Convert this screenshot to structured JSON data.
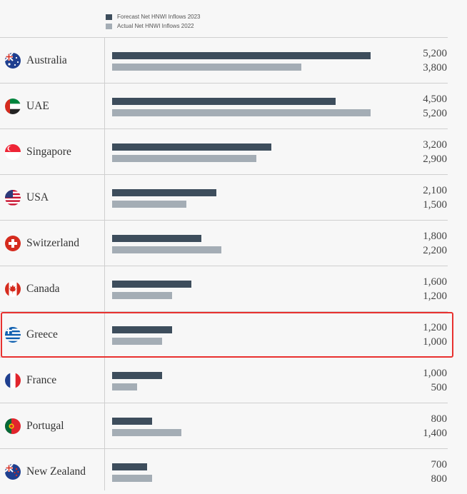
{
  "legend": {
    "forecast_label": "Forecast Net HNWI Inflows 2023",
    "actual_label": "Actual Net HNWI Inflows 2022"
  },
  "colors": {
    "forecast": "#3d4d5c",
    "actual": "#a4adb5",
    "highlight": "#e8312f"
  },
  "chart_data": {
    "type": "bar",
    "orientation": "horizontal",
    "categories": [
      "Australia",
      "UAE",
      "Singapore",
      "USA",
      "Switzerland",
      "Canada",
      "Greece",
      "France",
      "Portugal",
      "New Zealand"
    ],
    "series": [
      {
        "name": "Forecast Net HNWI Inflows 2023",
        "values": [
          5200,
          4500,
          3200,
          2100,
          1800,
          1600,
          1200,
          1000,
          800,
          700
        ]
      },
      {
        "name": "Actual Net HNWI Inflows 2022",
        "values": [
          3800,
          5200,
          2900,
          1500,
          2200,
          1200,
          1000,
          500,
          1400,
          800
        ]
      }
    ],
    "value_labels": [
      [
        "5,200",
        "3,800"
      ],
      [
        "4,500",
        "5,200"
      ],
      [
        "3,200",
        "2,900"
      ],
      [
        "2,100",
        "1,500"
      ],
      [
        "1,800",
        "2,200"
      ],
      [
        "1,600",
        "1,200"
      ],
      [
        "1,200",
        "1,000"
      ],
      [
        "1,000",
        "500"
      ],
      [
        "800",
        "1,400"
      ],
      [
        "700",
        "800"
      ]
    ],
    "xlim": [
      0,
      5200
    ],
    "legend_position": "top-left",
    "highlighted_category": "Greece",
    "flags": [
      "australia-flag-icon",
      "uae-flag-icon",
      "singapore-flag-icon",
      "usa-flag-icon",
      "switzerland-flag-icon",
      "canada-flag-icon",
      "greece-flag-icon",
      "france-flag-icon",
      "portugal-flag-icon",
      "new-zealand-flag-icon"
    ]
  }
}
